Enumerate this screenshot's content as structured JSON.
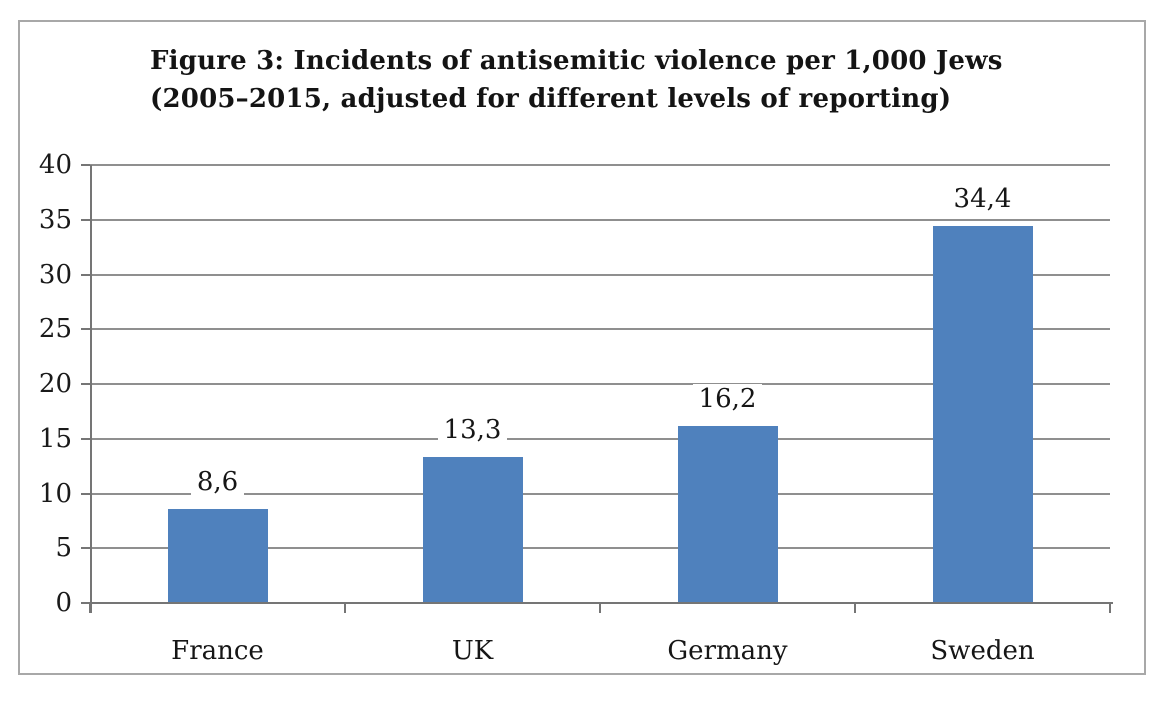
{
  "chart": {
    "title_line1": "Figure 3: Incidents of antisemitic violence per 1,000 Jews",
    "title_line2": "(2005–2015, adjusted for different levels of reporting)"
  },
  "chart_data": {
    "type": "bar",
    "title": "Figure 3: Incidents of antisemitic violence per 1,000 Jews (2005–2015, adjusted for different levels of reporting)",
    "categories": [
      "France",
      "UK",
      "Germany",
      "Sweden"
    ],
    "values": [
      8.6,
      13.3,
      16.2,
      34.4
    ],
    "value_labels": [
      "8,6",
      "13,3",
      "16,2",
      "34,4"
    ],
    "xlabel": "",
    "ylabel": "",
    "ylim": [
      0,
      40
    ],
    "yticks": [
      0,
      5,
      10,
      15,
      20,
      25,
      30,
      35,
      40
    ],
    "grid": true,
    "legend": false,
    "decimal_separator": ",",
    "colors": {
      "bar": "#4f81bd",
      "gridline": "#8f8f8f",
      "axis": "#757575",
      "frame_border": "#a8a8a8",
      "text": "#1a1a1a",
      "background": "#ffffff"
    }
  }
}
